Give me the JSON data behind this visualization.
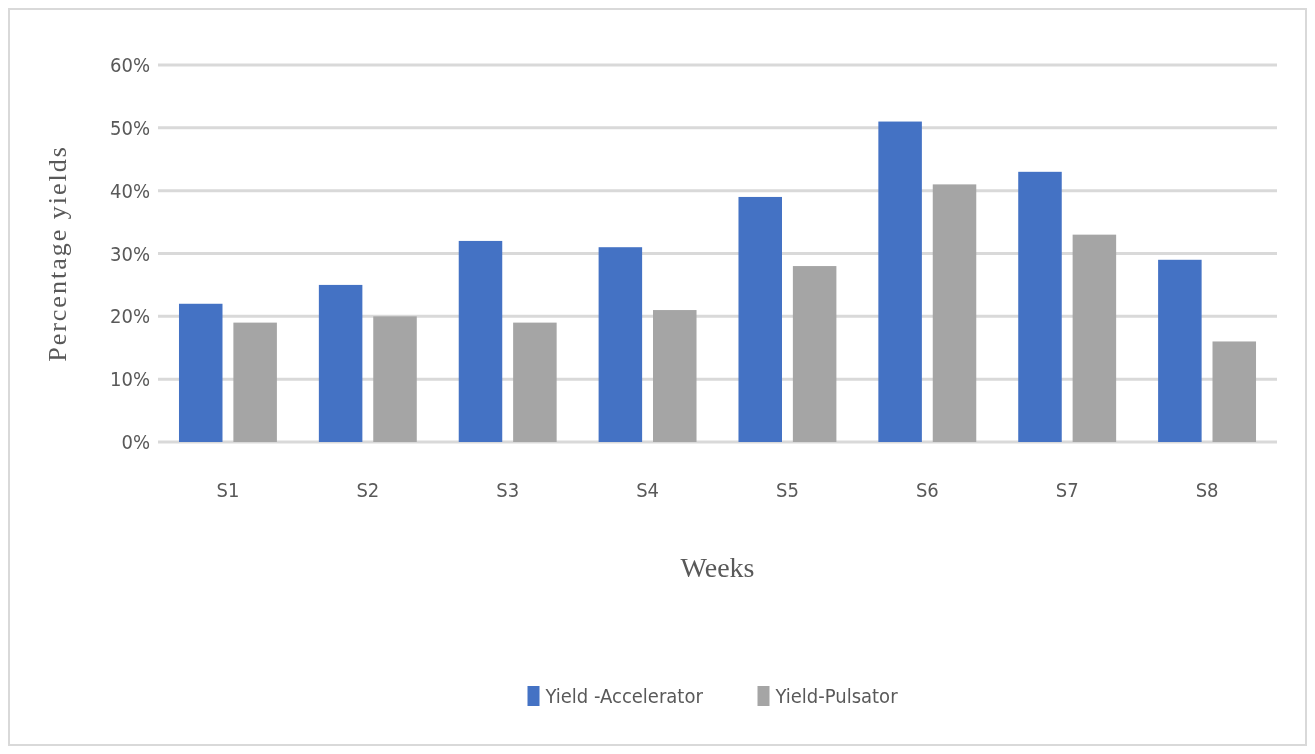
{
  "chart_data": {
    "type": "bar",
    "xlabel": "Weeks",
    "ylabel": "Percentage yields",
    "categories": [
      "S1",
      "S2",
      "S3",
      "S4",
      "S5",
      "S6",
      "S7",
      "S8"
    ],
    "series": [
      {
        "name": "Yield -Accelerator",
        "color": "#4472c4",
        "values": [
          22,
          25,
          32,
          31,
          39,
          51,
          43,
          29
        ]
      },
      {
        "name": "Yield-Pulsator",
        "color": "#a5a5a5",
        "values": [
          19,
          20,
          19,
          21,
          28,
          41,
          33,
          16
        ]
      }
    ],
    "ylim": [
      0,
      60
    ],
    "yticks": [
      {
        "value": 0,
        "label": "0%"
      },
      {
        "value": 10,
        "label": "10%"
      },
      {
        "value": 20,
        "label": "20%"
      },
      {
        "value": 30,
        "label": "30%"
      },
      {
        "value": 40,
        "label": "40%"
      },
      {
        "value": 50,
        "label": "50%"
      },
      {
        "value": 60,
        "label": "60%"
      }
    ],
    "grid": "y",
    "legend": "bottom"
  }
}
